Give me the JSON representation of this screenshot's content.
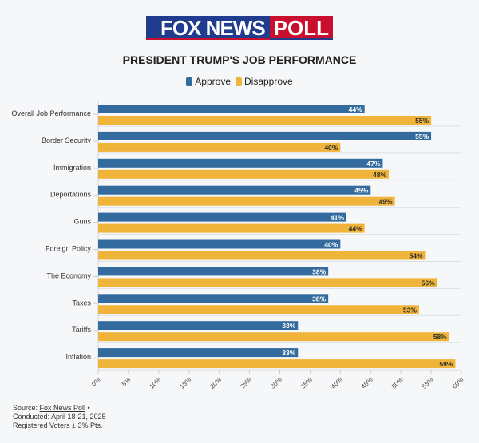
{
  "header": {
    "logo_text_left": "FOX NEWS",
    "logo_text_right": "POLL"
  },
  "colors": {
    "approve": "#336b9e",
    "disapprove": "#f0b43a",
    "grid": "#dcdfe4"
  },
  "chart_data": {
    "type": "bar",
    "orientation": "horizontal",
    "title": "PRESIDENT TRUMP'S JOB PERFORMANCE",
    "categories": [
      "Overall Job Performance",
      "Border Security",
      "Immigration",
      "Deportations",
      "Guns",
      "Foreign Policy",
      "The Economy",
      "Taxes",
      "Tariffs",
      "Inflation"
    ],
    "series": [
      {
        "name": "Approve",
        "values": [
          44,
          55,
          47,
          45,
          41,
          40,
          38,
          38,
          33,
          33
        ]
      },
      {
        "name": "Disapprove",
        "values": [
          55,
          40,
          48,
          49,
          44,
          54,
          56,
          53,
          58,
          59
        ]
      }
    ],
    "xlim": [
      0,
      60
    ],
    "xticks": [
      "0%",
      "5%",
      "10%",
      "15%",
      "20%",
      "25%",
      "30%",
      "35%",
      "40%",
      "45%",
      "50%",
      "55%",
      "60%"
    ],
    "value_suffix": "%",
    "legend": "top-center",
    "grid": true
  },
  "footer": {
    "source_label": "Source: ",
    "source_link": "Fox News Poll",
    "source_suffix": " •",
    "conducted": "Conducted: April 18-21, 2025",
    "voters": "Registered Voters ± 3% Pts."
  }
}
